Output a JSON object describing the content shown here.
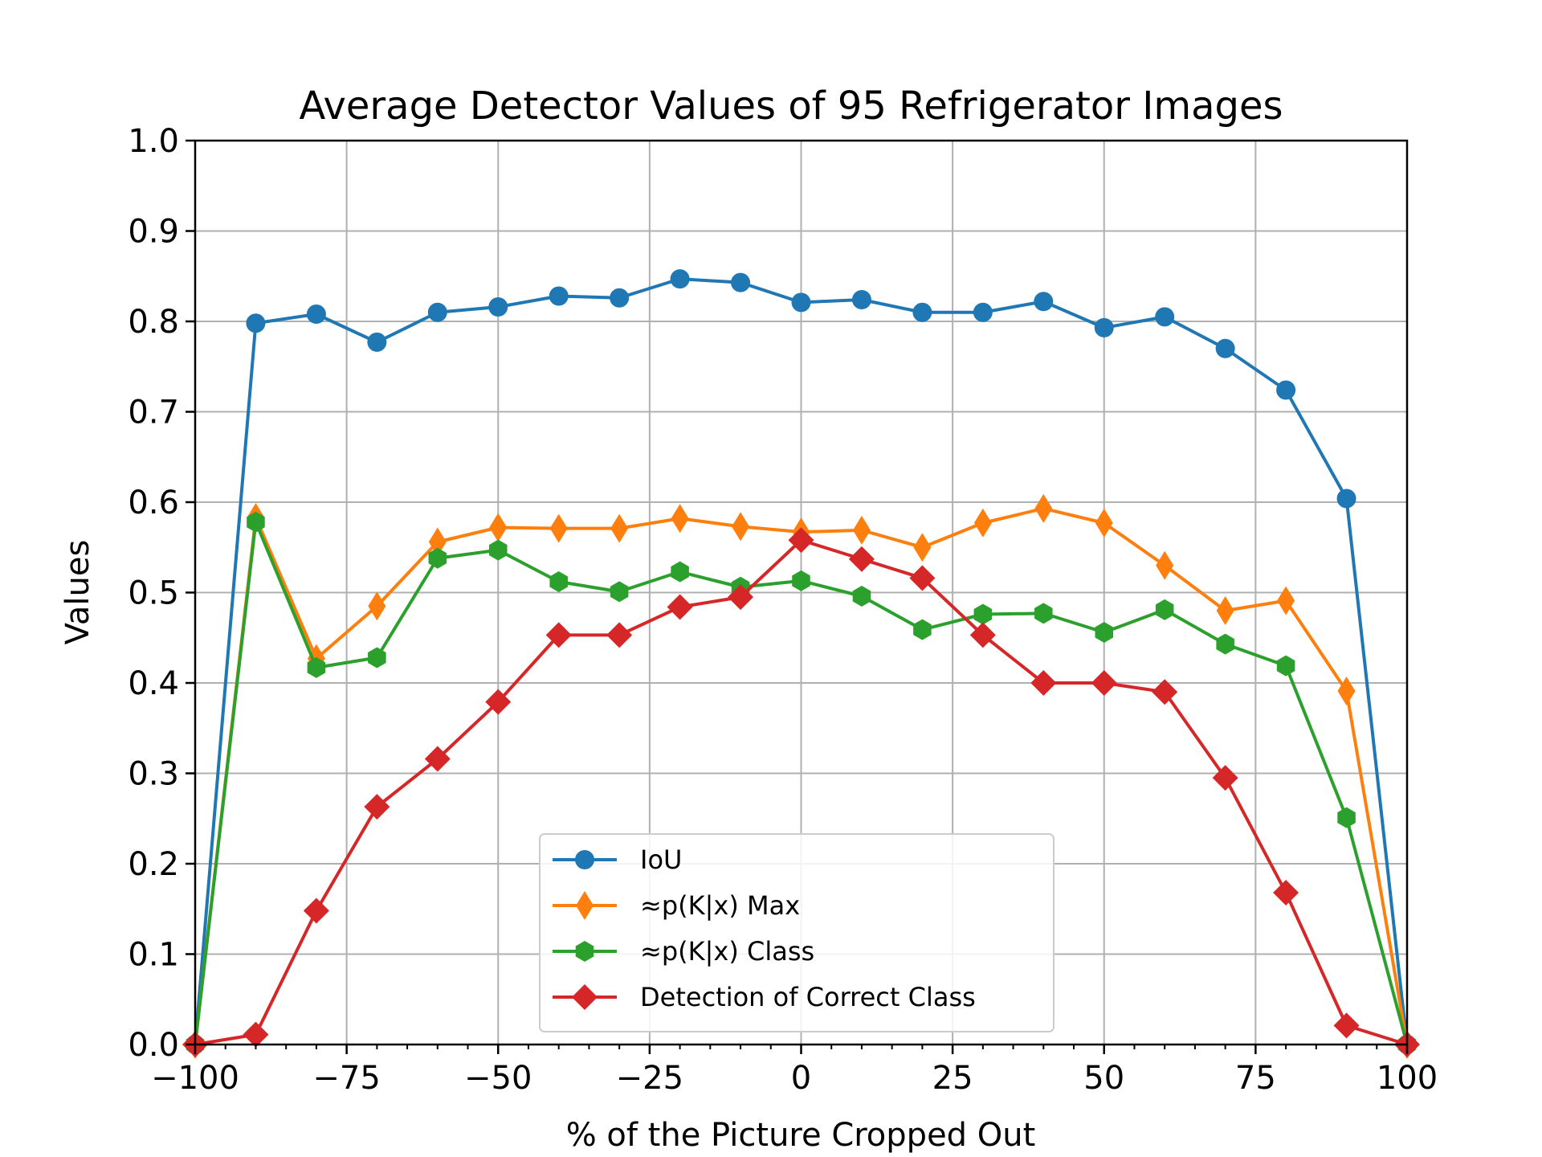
{
  "chart_data": {
    "type": "line",
    "title": "Average Detector Values of 95 Refrigerator Images",
    "xlabel": "% of the Picture Cropped Out",
    "ylabel": "Values",
    "xlim": [
      -100,
      100
    ],
    "ylim": [
      0,
      1
    ],
    "grid": true,
    "legend_position": "lower-center",
    "x_ticks": [
      -100,
      -75,
      -50,
      -25,
      0,
      25,
      50,
      75,
      100
    ],
    "x_tick_labels": [
      "−100",
      "−75",
      "−50",
      "−25",
      "0",
      "25",
      "50",
      "75",
      "100"
    ],
    "y_ticks": [
      0,
      0.1,
      0.2,
      0.3,
      0.4,
      0.5,
      0.6,
      0.7,
      0.8,
      0.9,
      1.0
    ],
    "y_tick_labels": [
      "0.0",
      "0.1",
      "0.2",
      "0.3",
      "0.4",
      "0.5",
      "0.6",
      "0.7",
      "0.8",
      "0.9",
      "1.0"
    ],
    "x": [
      -100,
      -90,
      -80,
      -70,
      -60,
      -50,
      -40,
      -30,
      -20,
      -10,
      0,
      10,
      20,
      30,
      40,
      50,
      60,
      70,
      80,
      90,
      100
    ],
    "series": [
      {
        "name": "IoU",
        "color": "#1f77b4",
        "marker": "circle",
        "values": [
          0.0,
          0.798,
          0.808,
          0.777,
          0.81,
          0.816,
          0.828,
          0.826,
          0.847,
          0.843,
          0.821,
          0.824,
          0.81,
          0.81,
          0.822,
          0.793,
          0.805,
          0.77,
          0.724,
          0.604,
          0.0
        ]
      },
      {
        "name": "≈p(K|x) Max",
        "color": "#ff7f0e",
        "marker": "thin-diamond",
        "values": [
          0.0,
          0.583,
          0.427,
          0.485,
          0.556,
          0.572,
          0.571,
          0.571,
          0.582,
          0.573,
          0.567,
          0.569,
          0.55,
          0.577,
          0.593,
          0.577,
          0.53,
          0.48,
          0.491,
          0.391,
          0.0
        ]
      },
      {
        "name": "≈p(K|x) Class",
        "color": "#2ca02c",
        "marker": "hexagon",
        "values": [
          0.0,
          0.578,
          0.417,
          0.428,
          0.538,
          0.547,
          0.512,
          0.501,
          0.523,
          0.506,
          0.513,
          0.496,
          0.459,
          0.476,
          0.477,
          0.456,
          0.481,
          0.443,
          0.419,
          0.251,
          0.0
        ]
      },
      {
        "name": "Detection of Correct Class",
        "color": "#d62728",
        "marker": "diamond",
        "values": [
          0.0,
          0.011,
          0.148,
          0.263,
          0.316,
          0.379,
          0.453,
          0.453,
          0.484,
          0.495,
          0.558,
          0.537,
          0.516,
          0.453,
          0.4,
          0.4,
          0.39,
          0.295,
          0.168,
          0.021,
          0.0
        ]
      }
    ]
  }
}
